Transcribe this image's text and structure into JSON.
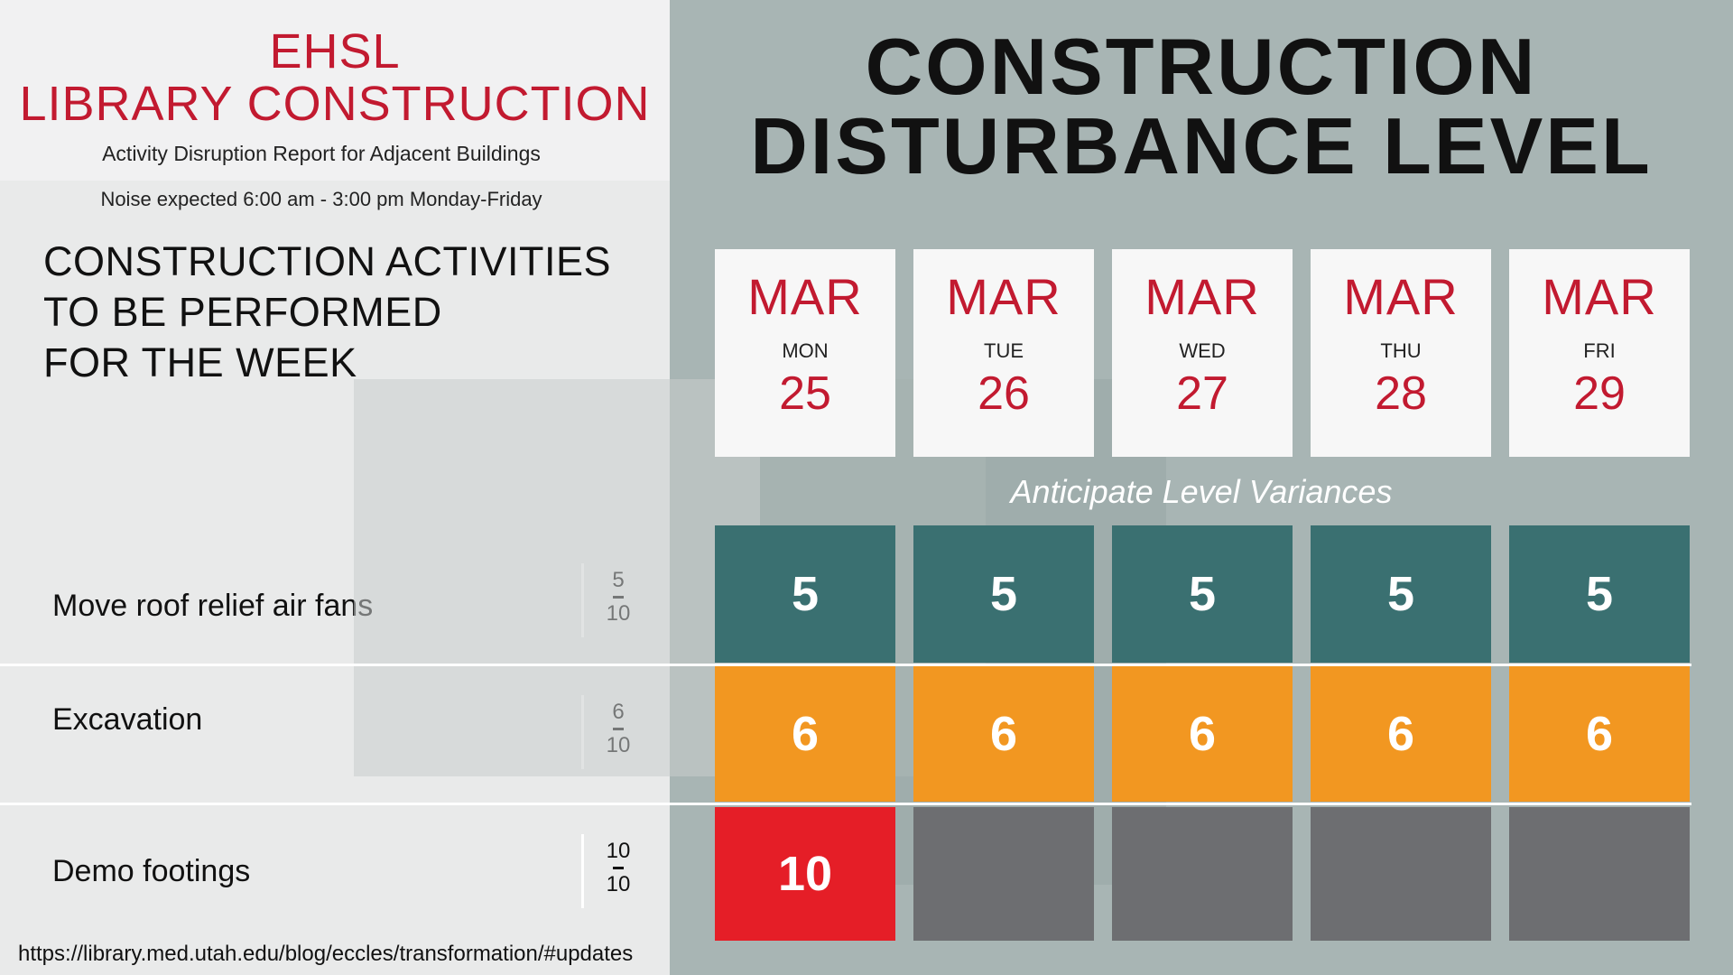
{
  "header": {
    "line1": "EHSL",
    "line2": "LIBRARY CONSTRUCTION",
    "subtitle": "Activity Disruption Report for Adjacent Buildings",
    "noise": "Noise expected 6:00 am - 3:00 pm Monday-Friday"
  },
  "activities_title": {
    "l1": "CONSTRUCTION ACTIVITIES",
    "l2": "TO BE PERFORMED",
    "l3": "FOR THE WEEK"
  },
  "main_title": {
    "l1": "CONSTRUCTION",
    "l2": "DISTURBANCE LEVEL"
  },
  "variances": "Anticipate Level Variances",
  "days": [
    {
      "month": "MAR",
      "weekday": "MON",
      "date": "25"
    },
    {
      "month": "MAR",
      "weekday": "TUE",
      "date": "26"
    },
    {
      "month": "MAR",
      "weekday": "WED",
      "date": "27"
    },
    {
      "month": "MAR",
      "weekday": "THU",
      "date": "28"
    },
    {
      "month": "MAR",
      "weekday": "FRI",
      "date": "29"
    }
  ],
  "activities": [
    {
      "label": "Move roof relief air fans",
      "level": "5",
      "max": "10",
      "color": "#3a7071",
      "cells": [
        "5",
        "5",
        "5",
        "5",
        "5"
      ]
    },
    {
      "label": "Excavation",
      "level": "6",
      "max": "10",
      "color": "#f29721",
      "cells": [
        "6",
        "6",
        "6",
        "6",
        "6"
      ]
    },
    {
      "label": "Demo footings",
      "level": "10",
      "max": "10",
      "color": "#e51e27",
      "cells": [
        "10",
        "",
        "",
        "",
        ""
      ]
    }
  ],
  "url": "https://library.med.utah.edu/blog/eccles/transformation/#updates"
}
